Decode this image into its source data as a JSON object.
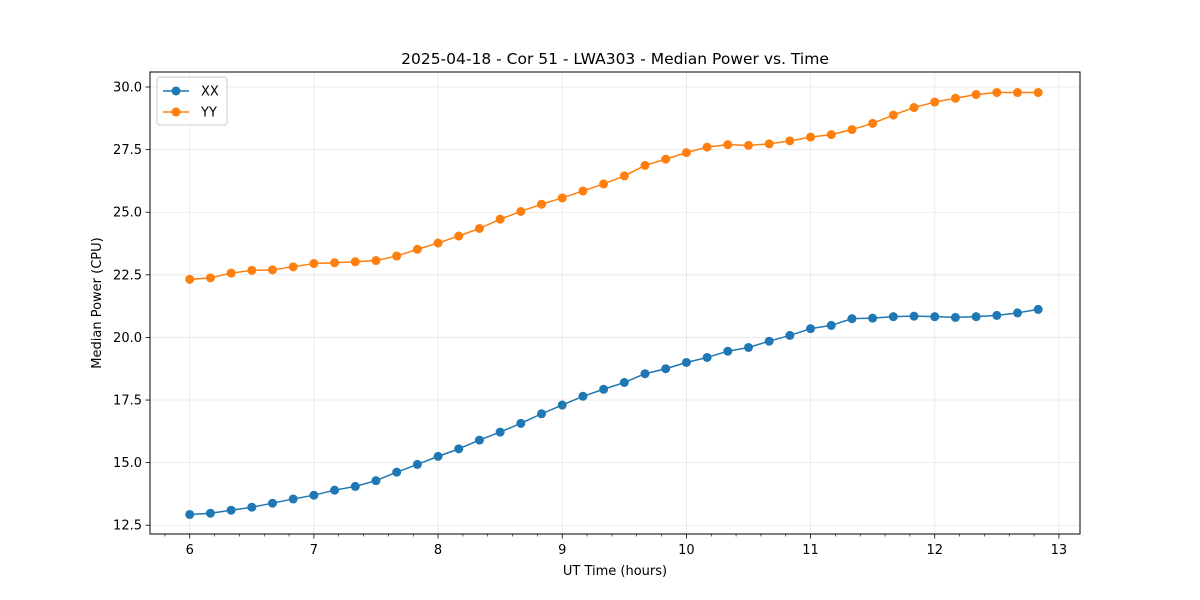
{
  "chart_data": {
    "type": "line",
    "title": "2025-04-18 - Cor 51 - LWA303 - Median Power vs. Time",
    "xlabel": "UT Time (hours)",
    "ylabel": "Median Power (CPU)",
    "xlim": [
      5.68,
      13.17
    ],
    "ylim": [
      12.15,
      30.6
    ],
    "xticks": [
      6,
      7,
      8,
      9,
      10,
      11,
      12,
      13
    ],
    "xtick_labels": [
      "6",
      "7",
      "8",
      "9",
      "10",
      "11",
      "12",
      "13"
    ],
    "xminor_step": 0.2,
    "yticks": [
      12.5,
      15.0,
      17.5,
      20.0,
      22.5,
      25.0,
      27.5,
      30.0
    ],
    "ytick_labels": [
      "12.5",
      "15.0",
      "17.5",
      "20.0",
      "22.5",
      "25.0",
      "27.5",
      "30.0"
    ],
    "grid": true,
    "legend_position": "top-left",
    "x": [
      6.0,
      6.1667,
      6.3333,
      6.5,
      6.6667,
      6.8333,
      7.0,
      7.1667,
      7.3333,
      7.5,
      7.6667,
      7.8333,
      8.0,
      8.1667,
      8.3333,
      8.5,
      8.6667,
      8.8333,
      9.0,
      9.1667,
      9.3333,
      9.5,
      9.6667,
      9.8333,
      10.0,
      10.1667,
      10.3333,
      10.5,
      10.6667,
      10.8333,
      11.0,
      11.1667,
      11.3333,
      11.5,
      11.6667,
      11.8333,
      12.0,
      12.1667,
      12.3333,
      12.5,
      12.6667,
      12.8333
    ],
    "series": [
      {
        "name": "XX",
        "color": "#1f77b4",
        "values": [
          12.93,
          12.98,
          13.1,
          13.22,
          13.38,
          13.55,
          13.7,
          13.9,
          14.05,
          14.28,
          14.62,
          14.93,
          15.25,
          15.55,
          15.9,
          16.22,
          16.57,
          16.95,
          17.3,
          17.65,
          17.93,
          18.2,
          18.55,
          18.75,
          19.0,
          19.2,
          19.45,
          19.6,
          19.85,
          20.08,
          20.35,
          20.48,
          20.75,
          20.77,
          20.83,
          20.85,
          20.83,
          20.8,
          20.83,
          20.88,
          20.98,
          21.12
        ]
      },
      {
        "name": "YY",
        "color": "#ff7f0e",
        "values": [
          22.32,
          22.38,
          22.57,
          22.68,
          22.7,
          22.82,
          22.95,
          22.98,
          23.02,
          23.07,
          23.25,
          23.52,
          23.77,
          24.05,
          24.35,
          24.72,
          25.03,
          25.32,
          25.57,
          25.85,
          26.13,
          26.45,
          26.87,
          27.12,
          27.38,
          27.6,
          27.7,
          27.67,
          27.73,
          27.85,
          28.0,
          28.1,
          28.3,
          28.55,
          28.88,
          29.18,
          29.4,
          29.55,
          29.7,
          29.78,
          29.78,
          29.78
        ]
      }
    ]
  }
}
